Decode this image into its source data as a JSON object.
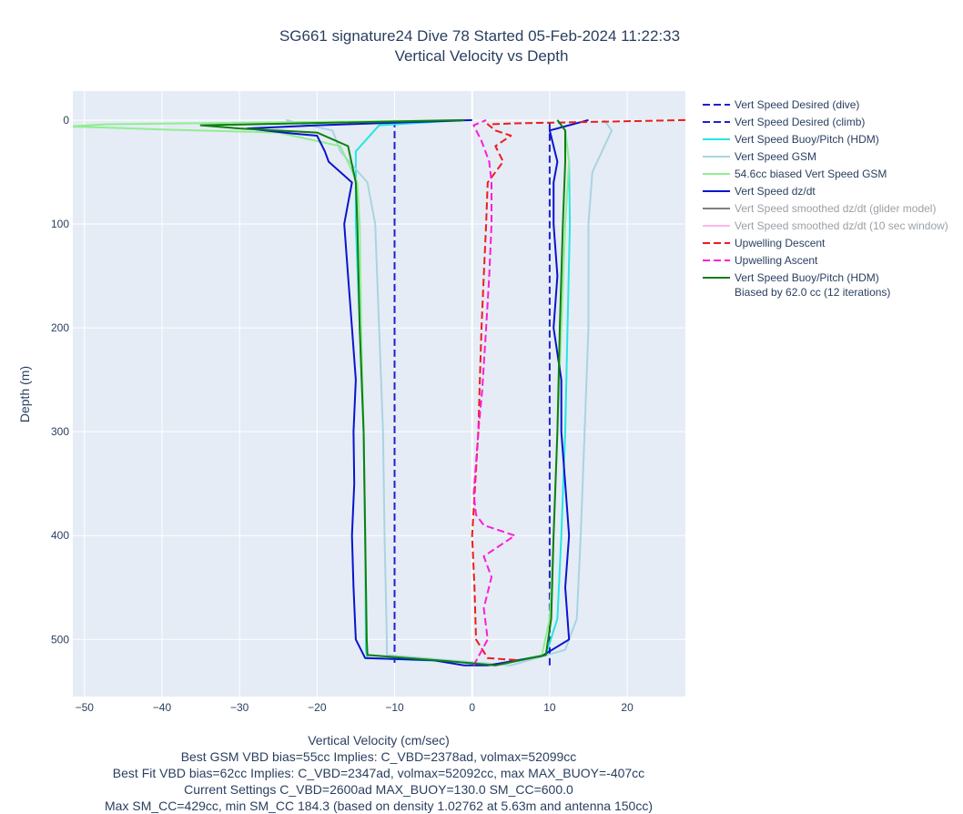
{
  "chart_data": {
    "type": "line",
    "title": "SG661 signature24 Dive 78 Started 05-Feb-2024 11:22:33",
    "subtitle": "Vertical Velocity vs Depth",
    "xlabel": "Vertical Velocity (cm/sec)",
    "ylabel": "Depth (m)",
    "xlim": [
      -51.5,
      27.5
    ],
    "ylim": [
      555,
      -28
    ],
    "x_ticks": [
      -50,
      -40,
      -30,
      -20,
      -10,
      0,
      10,
      20
    ],
    "y_ticks": [
      0,
      100,
      200,
      300,
      400,
      500
    ],
    "grid": true,
    "legend_position": "right",
    "series": [
      {
        "name": "Vert Speed Desired (dive)",
        "color": "#1f1fcf",
        "dash": "dash",
        "points": [
          [
            -10,
            0
          ],
          [
            -10,
            525
          ]
        ]
      },
      {
        "name": "Vert Speed Desired (climb)",
        "color": "#1f1fcf",
        "dash": "dash",
        "points": [
          [
            10,
            525
          ],
          [
            10,
            0
          ]
        ]
      },
      {
        "name": "Vert Speed Buoy/Pitch (HDM)",
        "color": "#22e8e0",
        "dash": "solid",
        "points": [
          [
            -1,
            0
          ],
          [
            -12,
            5
          ],
          [
            -15,
            30
          ],
          [
            -15,
            100
          ],
          [
            -14.5,
            200
          ],
          [
            -14,
            300
          ],
          [
            -13.8,
            400
          ],
          [
            -13.7,
            510
          ],
          [
            -13.5,
            518
          ],
          [
            -3,
            521
          ],
          [
            3,
            525
          ],
          [
            9.5,
            515
          ],
          [
            11,
            480
          ],
          [
            11.5,
            400
          ],
          [
            12,
            300
          ],
          [
            12.3,
            200
          ],
          [
            12.6,
            100
          ],
          [
            12.5,
            40
          ],
          [
            12,
            10
          ],
          [
            11,
            0
          ]
        ]
      },
      {
        "name": "Vert Speed GSM",
        "color": "#a9d4e0",
        "dash": "solid",
        "points": [
          [
            -24,
            0
          ],
          [
            -18,
            10
          ],
          [
            -17,
            30
          ],
          [
            -13.5,
            60
          ],
          [
            -12.5,
            100
          ],
          [
            -12,
            200
          ],
          [
            -11.5,
            300
          ],
          [
            -11.3,
            400
          ],
          [
            -11,
            500
          ],
          [
            -11,
            515
          ],
          [
            -3,
            520
          ],
          [
            5,
            525
          ],
          [
            12,
            510
          ],
          [
            13.5,
            480
          ],
          [
            14,
            400
          ],
          [
            14.5,
            300
          ],
          [
            15,
            200
          ],
          [
            15,
            100
          ],
          [
            15.5,
            50
          ],
          [
            18,
            10
          ],
          [
            17,
            0
          ]
        ]
      },
      {
        "name": "54.6cc biased Vert Speed GSM",
        "color": "#90ee90",
        "dash": "solid",
        "points": [
          [
            -0.5,
            0
          ],
          [
            -47,
            4
          ],
          [
            -52,
            6
          ],
          [
            -40,
            9
          ],
          [
            -25,
            12
          ],
          [
            -17,
            25
          ],
          [
            -14.8,
            60
          ],
          [
            -14.5,
            100
          ],
          [
            -14.3,
            200
          ],
          [
            -14,
            300
          ],
          [
            -13.8,
            400
          ],
          [
            -13.6,
            500
          ],
          [
            -13.5,
            515
          ],
          [
            -3,
            521
          ],
          [
            3,
            525
          ],
          [
            9,
            515
          ],
          [
            10,
            480
          ],
          [
            10.5,
            400
          ],
          [
            11,
            300
          ],
          [
            11.5,
            200
          ],
          [
            12,
            100
          ],
          [
            12.5,
            40
          ],
          [
            12,
            10
          ],
          [
            11,
            0
          ]
        ]
      },
      {
        "name": "Vert Speed dz/dt",
        "color": "#0a14cc",
        "dash": "solid",
        "points": [
          [
            0,
            0
          ],
          [
            -20,
            5
          ],
          [
            -29,
            8
          ],
          [
            -23,
            13
          ],
          [
            -20,
            15
          ],
          [
            -19,
            30
          ],
          [
            -18.5,
            40
          ],
          [
            -15.5,
            60
          ],
          [
            -16,
            80
          ],
          [
            -16.5,
            100
          ],
          [
            -16,
            150
          ],
          [
            -15.5,
            200
          ],
          [
            -15,
            250
          ],
          [
            -15.3,
            300
          ],
          [
            -15.2,
            350
          ],
          [
            -15.5,
            400
          ],
          [
            -15.3,
            450
          ],
          [
            -15,
            500
          ],
          [
            -13.8,
            518
          ],
          [
            -5,
            520
          ],
          [
            -1,
            525
          ],
          [
            2,
            525
          ],
          [
            9,
            516
          ],
          [
            12.5,
            500
          ],
          [
            12,
            450
          ],
          [
            12.5,
            400
          ],
          [
            12,
            350
          ],
          [
            11.5,
            300
          ],
          [
            11.5,
            250
          ],
          [
            10.5,
            200
          ],
          [
            11,
            150
          ],
          [
            10.5,
            100
          ],
          [
            10.5,
            60
          ],
          [
            11,
            40
          ],
          [
            10,
            10
          ],
          [
            15,
            0
          ]
        ]
      },
      {
        "name": "Vert Speed smoothed dz/dt (glider model)",
        "color": "#7f7f7f",
        "dash": "solid",
        "dim": true,
        "points": []
      },
      {
        "name": "Vert Speed smoothed dz/dt (10 sec window)",
        "color": "#ffb6f0",
        "dash": "solid",
        "dim": true,
        "points": []
      },
      {
        "name": "Upwelling Descent",
        "color": "#ee1c1c",
        "dash": "dash",
        "points": [
          [
            27.5,
            0
          ],
          [
            13.5,
            2
          ],
          [
            6,
            3
          ],
          [
            2,
            4
          ],
          [
            3,
            10
          ],
          [
            5,
            15
          ],
          [
            3,
            25
          ],
          [
            4,
            40
          ],
          [
            2,
            60
          ],
          [
            1.8,
            100
          ],
          [
            1.5,
            150
          ],
          [
            1.2,
            200
          ],
          [
            1,
            250
          ],
          [
            0.8,
            300
          ],
          [
            0.4,
            350
          ],
          [
            0,
            400
          ],
          [
            0.3,
            450
          ],
          [
            0.5,
            500
          ],
          [
            2,
            518
          ],
          [
            6,
            520
          ]
        ]
      },
      {
        "name": "Upwelling Ascent",
        "color": "#ff1cd4",
        "dash": "dash",
        "points": [
          [
            0.2,
            525
          ],
          [
            2,
            500
          ],
          [
            1.5,
            470
          ],
          [
            2.5,
            440
          ],
          [
            1.5,
            420
          ],
          [
            5.5,
            400
          ],
          [
            1.5,
            390
          ],
          [
            0.5,
            380
          ],
          [
            0.2,
            360
          ],
          [
            0.5,
            330
          ],
          [
            0.8,
            300
          ],
          [
            1.3,
            260
          ],
          [
            1.8,
            200
          ],
          [
            2.2,
            150
          ],
          [
            2.5,
            100
          ],
          [
            2.5,
            60
          ],
          [
            2.2,
            40
          ],
          [
            1.2,
            20
          ],
          [
            0.2,
            5
          ],
          [
            1.8,
            0
          ]
        ]
      },
      {
        "name": "Vert Speed Buoy/Pitch (HDM)",
        "name_line2": "Biased by 62.0 cc (12 iterations)",
        "color": "#0f7f10",
        "dash": "solid",
        "points": [
          [
            -1,
            0
          ],
          [
            -35,
            5
          ],
          [
            -30,
            8
          ],
          [
            -20,
            12
          ],
          [
            -16,
            25
          ],
          [
            -15,
            60
          ],
          [
            -14.8,
            100
          ],
          [
            -14.5,
            200
          ],
          [
            -14,
            300
          ],
          [
            -13.8,
            400
          ],
          [
            -13.6,
            500
          ],
          [
            -13.5,
            515
          ],
          [
            -3,
            521
          ],
          [
            3,
            525
          ],
          [
            9.5,
            515
          ],
          [
            10.2,
            480
          ],
          [
            10.5,
            400
          ],
          [
            11,
            300
          ],
          [
            11.3,
            200
          ],
          [
            11.7,
            100
          ],
          [
            12,
            40
          ],
          [
            12,
            10
          ],
          [
            11,
            0
          ]
        ]
      }
    ]
  },
  "notes": [
    "Best GSM VBD bias=55cc Implies: C_VBD=2378ad, volmax=52099cc",
    "Best Fit VBD bias=62cc Implies: C_VBD=2347ad, volmax=52092cc, max MAX_BUOY=-407cc",
    "Current Settings C_VBD=2600ad MAX_BUOY=130.0 SM_CC=600.0",
    "Max SM_CC=429cc, min SM_CC 184.3 (based on density 1.02762 at 5.63m and antenna 150cc)"
  ]
}
